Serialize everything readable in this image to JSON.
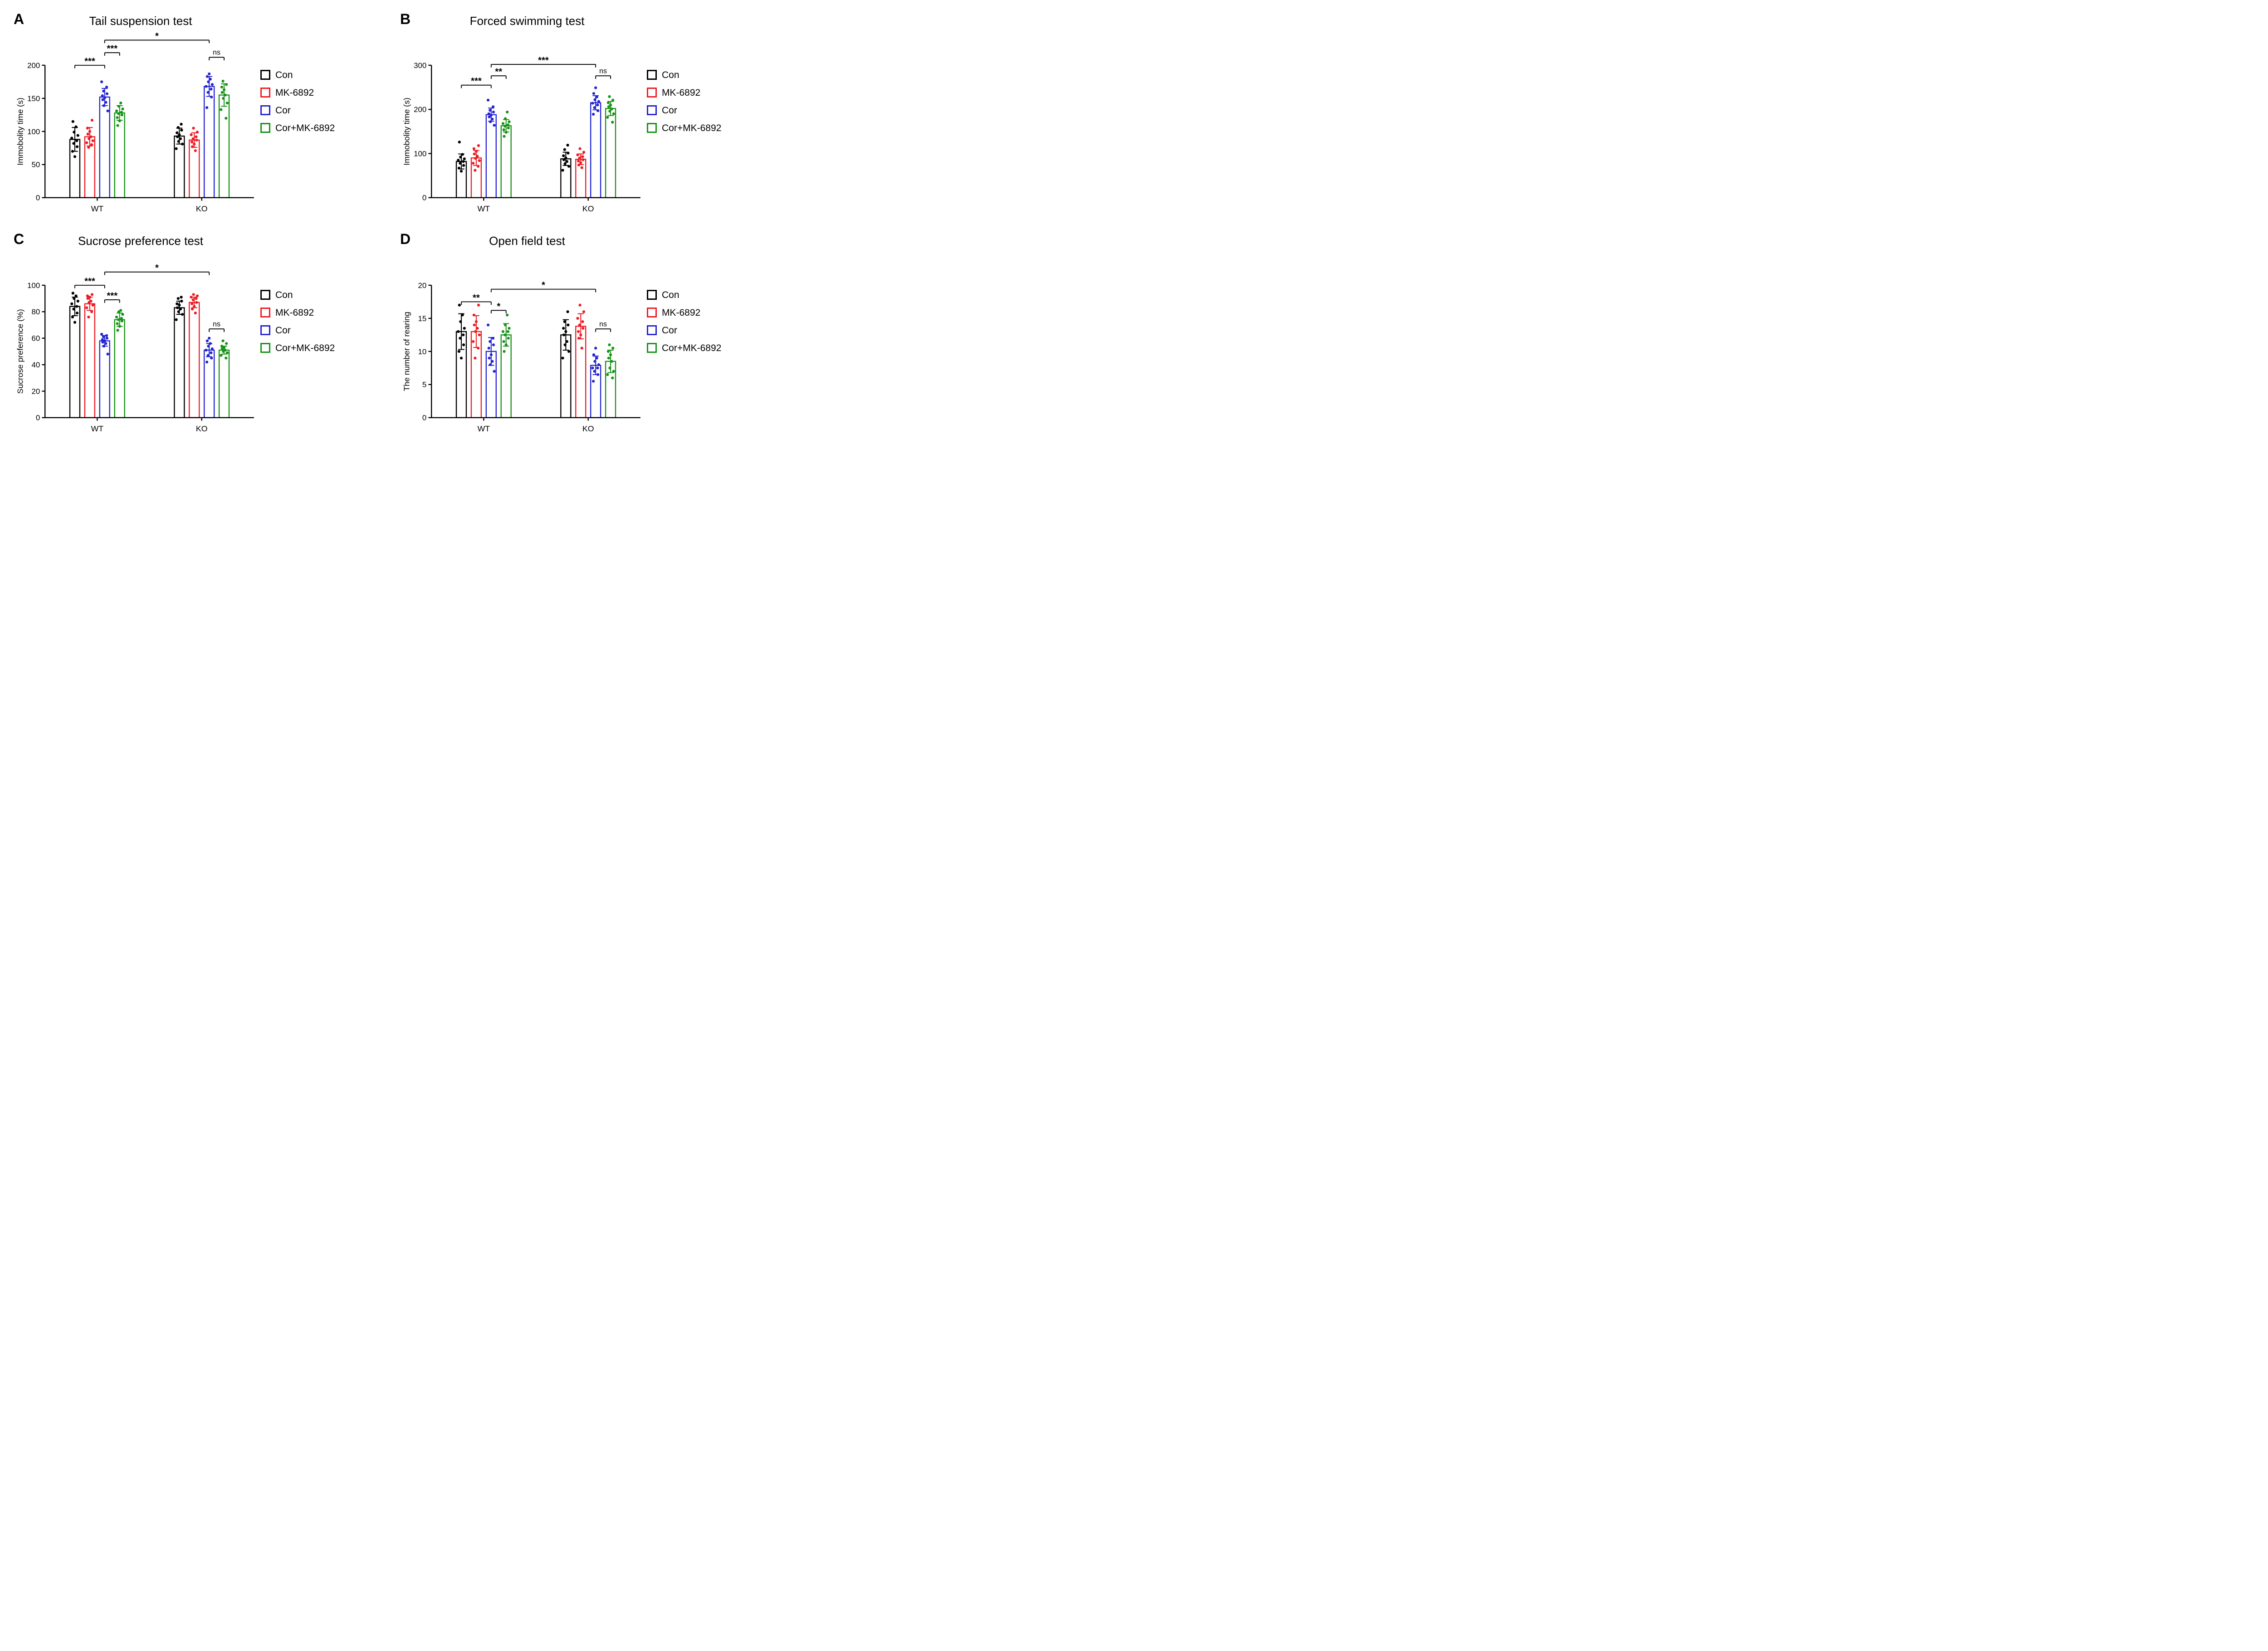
{
  "legend": {
    "items": [
      {
        "label": "Con",
        "color": "#000000"
      },
      {
        "label": "MK-6892",
        "color": "#ed1c24"
      },
      {
        "label": "Cor",
        "color": "#2424d2"
      },
      {
        "label": "Cor+MK-6892",
        "color": "#169316"
      }
    ],
    "position": "right"
  },
  "chart_data": [
    {
      "panel": "A",
      "type": "bar",
      "overlay": "scatter",
      "title": "Tail suspension test",
      "xlabel": "",
      "ylabel": "Immobolity time (s)",
      "ylim": [
        0,
        200
      ],
      "yticks": [
        0,
        50,
        100,
        150,
        200
      ],
      "categories": [
        "WT",
        "KO"
      ],
      "grid": false,
      "legend_position": "right",
      "series": [
        {
          "name": "Con",
          "color": "#000000",
          "values": [
            88,
            93
          ],
          "errors": [
            18,
            12
          ],
          "points": [
            [
              62,
              70,
              77,
              82,
              86,
              90,
              94,
              99,
              107,
              115
            ],
            [
              74,
              81,
              85,
              89,
              92,
              95,
              98,
              102,
              106,
              111
            ]
          ]
        },
        {
          "name": "MK-6892",
          "color": "#ed1c24",
          "values": [
            92,
            87
          ],
          "errors": [
            14,
            11
          ],
          "points": [
            [
              76,
              80,
              83,
              86,
              89,
              92,
              96,
              100,
              105,
              117
            ],
            [
              71,
              77,
              81,
              84,
              87,
              89,
              92,
              95,
              99,
              105
            ]
          ]
        },
        {
          "name": "Cor",
          "color": "#2424d2",
          "values": [
            152,
            168
          ],
          "errors": [
            13,
            15
          ],
          "points": [
            [
              131,
              139,
              144,
              148,
              151,
              154,
              157,
              161,
              167,
              175
            ],
            [
              136,
              152,
              159,
              164,
              168,
              171,
              175,
              179,
              183,
              187
            ]
          ]
        },
        {
          "name": "Cor+MK-6892",
          "color": "#169316",
          "values": [
            128,
            155
          ],
          "errors": [
            11,
            17
          ],
          "points": [
            [
              109,
              116,
              121,
              125,
              127,
              129,
              131,
              134,
              138,
              143
            ],
            [
              120,
              133,
              143,
              150,
              155,
              159,
              163,
              167,
              171,
              176
            ]
          ]
        }
      ],
      "annotations": [
        {
          "from": [
            0,
            0
          ],
          "to": [
            0,
            2
          ],
          "label": "***",
          "y": 200
        },
        {
          "from": [
            0,
            2
          ],
          "to": [
            0,
            3
          ],
          "label": "***",
          "y": 219
        },
        {
          "from": [
            0,
            2
          ],
          "to": [
            1,
            2
          ],
          "label": "*",
          "y": 238
        },
        {
          "from": [
            1,
            2
          ],
          "to": [
            1,
            3
          ],
          "label": "ns",
          "y": 212
        }
      ]
    },
    {
      "panel": "B",
      "type": "bar",
      "overlay": "scatter",
      "title": "Forced swimming test",
      "xlabel": "",
      "ylabel": "Immobolity time (s)",
      "ylim": [
        0,
        300
      ],
      "yticks": [
        0,
        100,
        200,
        300
      ],
      "categories": [
        "WT",
        "KO"
      ],
      "grid": false,
      "legend_position": "right",
      "series": [
        {
          "name": "Con",
          "color": "#000000",
          "values": [
            82,
            88
          ],
          "errors": [
            17,
            15
          ],
          "points": [
            [
              60,
              67,
              73,
              78,
              82,
              85,
              88,
              92,
              98,
              126
            ],
            [
              62,
              71,
              77,
              82,
              86,
              90,
              95,
              101,
              109,
              119
            ]
          ]
        },
        {
          "name": "MK-6892",
          "color": "#ed1c24",
          "values": [
            90,
            87
          ],
          "errors": [
            17,
            12
          ],
          "points": [
            [
              62,
              71,
              78,
              84,
              89,
              94,
              99,
              105,
              111,
              118
            ],
            [
              68,
              74,
              79,
              83,
              86,
              90,
              93,
              97,
              103,
              111
            ]
          ]
        },
        {
          "name": "Cor",
          "color": "#2424d2",
          "values": [
            188,
            215
          ],
          "errors": [
            15,
            16
          ],
          "points": [
            [
              164,
              172,
              178,
              183,
              187,
              190,
              194,
              198,
              206,
              221
            ],
            [
              189,
              197,
              204,
              210,
              214,
              218,
              222,
              228,
              236,
              249
            ]
          ]
        },
        {
          "name": "Cor+MK-6892",
          "color": "#169316",
          "values": [
            163,
            202
          ],
          "errors": [
            14,
            16
          ],
          "points": [
            [
              139,
              148,
              154,
              158,
              162,
              165,
              168,
              172,
              179,
              194
            ],
            [
              171,
              182,
              190,
              196,
              201,
              206,
              210,
              215,
              221,
              229
            ]
          ]
        }
      ],
      "annotations": [
        {
          "from": [
            0,
            0
          ],
          "to": [
            0,
            2
          ],
          "label": "***",
          "y": 255
        },
        {
          "from": [
            0,
            2
          ],
          "to": [
            0,
            3
          ],
          "label": "**",
          "y": 276
        },
        {
          "from": [
            0,
            2
          ],
          "to": [
            1,
            2
          ],
          "label": "***",
          "y": 302
        },
        {
          "from": [
            1,
            2
          ],
          "to": [
            1,
            3
          ],
          "label": "ns",
          "y": 276
        }
      ]
    },
    {
      "panel": "C",
      "type": "bar",
      "overlay": "scatter",
      "title": "Sucrose preference test",
      "xlabel": "",
      "ylabel": "Sucrose preference (%)",
      "ylim": [
        0,
        100
      ],
      "yticks": [
        0,
        20,
        40,
        60,
        80,
        100
      ],
      "categories": [
        "WT",
        "KO"
      ],
      "grid": false,
      "legend_position": "right",
      "series": [
        {
          "name": "Con",
          "color": "#000000",
          "values": [
            84,
            83
          ],
          "errors": [
            7,
            5
          ],
          "points": [
            [
              72,
              76,
              79,
              82,
              84,
              86,
              88,
              90,
              92,
              94
            ],
            [
              74,
              78,
              80,
              82,
              83,
              85,
              86,
              88,
              90,
              91
            ]
          ]
        },
        {
          "name": "MK-6892",
          "color": "#ed1c24",
          "values": [
            86,
            87
          ],
          "errors": [
            5,
            4
          ],
          "points": [
            [
              76,
              80,
              83,
              85,
              87,
              88,
              90,
              91,
              92,
              93
            ],
            [
              79,
              82,
              84,
              86,
              87,
              89,
              90,
              91,
              92,
              93
            ]
          ]
        },
        {
          "name": "Cor",
          "color": "#2424d2",
          "values": [
            58,
            51
          ],
          "errors": [
            4,
            5
          ],
          "points": [
            [
              48,
              54,
              56,
              57,
              58,
              59,
              60,
              61,
              62,
              63
            ],
            [
              42,
              45,
              47,
              49,
              51,
              52,
              54,
              56,
              58,
              60
            ]
          ]
        },
        {
          "name": "Cor+MK-6892",
          "color": "#169316",
          "values": [
            74,
            51
          ],
          "errors": [
            5,
            3
          ],
          "points": [
            [
              66,
              69,
              71,
              73,
              74,
              75,
              76,
              78,
              80,
              81
            ],
            [
              45,
              47,
              49,
              50,
              51,
              52,
              53,
              54,
              56,
              58
            ]
          ]
        }
      ],
      "annotations": [
        {
          "from": [
            0,
            0
          ],
          "to": [
            0,
            2
          ],
          "label": "***",
          "y": 100
        },
        {
          "from": [
            0,
            2
          ],
          "to": [
            0,
            3
          ],
          "label": "***",
          "y": 89
        },
        {
          "from": [
            0,
            2
          ],
          "to": [
            1,
            2
          ],
          "label": "*",
          "y": 110
        },
        {
          "from": [
            1,
            2
          ],
          "to": [
            1,
            3
          ],
          "label": "ns",
          "y": 67
        }
      ]
    },
    {
      "panel": "D",
      "type": "bar",
      "overlay": "scatter",
      "title": "Open field test",
      "xlabel": "",
      "ylabel": "The number of rearing",
      "ylim": [
        0,
        20
      ],
      "yticks": [
        0,
        5,
        10,
        15,
        20
      ],
      "categories": [
        "WT",
        "KO"
      ],
      "grid": false,
      "legend_position": "right",
      "series": [
        {
          "name": "Con",
          "color": "#000000",
          "values": [
            13,
            12.5
          ],
          "errors": [
            2.7,
            2.3
          ],
          "points": [
            [
              9,
              10,
              11,
              12,
              12.5,
              13,
              13.5,
              14.5,
              15.5,
              17
            ],
            [
              9,
              10,
              11,
              11.5,
              12.5,
              13,
              13.5,
              14,
              14.5,
              16
            ]
          ]
        },
        {
          "name": "MK-6892",
          "color": "#ed1c24",
          "values": [
            13,
            13.8
          ],
          "errors": [
            2.4,
            1.9
          ],
          "points": [
            [
              9,
              10.5,
              11.5,
              12.5,
              13,
              13.5,
              14,
              14.5,
              15.5,
              17
            ],
            [
              10.5,
              12,
              12.5,
              13,
              13.5,
              14,
              14.5,
              15,
              16,
              17
            ]
          ]
        },
        {
          "name": "Cor",
          "color": "#2424d2",
          "values": [
            10,
            7.9
          ],
          "errors": [
            2.1,
            1.4
          ],
          "points": [
            [
              7,
              8,
              8.5,
              9,
              9.5,
              10.5,
              11,
              11.5,
              12,
              14
            ],
            [
              5.5,
              6.5,
              7,
              7.5,
              7.5,
              8,
              8.5,
              9,
              9.5,
              10.5
            ]
          ]
        },
        {
          "name": "Cor+MK-6892",
          "color": "#169316",
          "values": [
            12.5,
            8.5
          ],
          "errors": [
            1.7,
            1.7
          ],
          "points": [
            [
              10,
              11,
              11.5,
              12,
              12.5,
              13,
              13,
              13.5,
              14,
              15.5
            ],
            [
              6,
              6.5,
              7,
              7.5,
              8.5,
              9,
              9.5,
              10,
              10.5,
              11
            ]
          ]
        }
      ],
      "annotations": [
        {
          "from": [
            0,
            0
          ],
          "to": [
            0,
            2
          ],
          "label": "**",
          "y": 17.5
        },
        {
          "from": [
            0,
            2
          ],
          "to": [
            0,
            3
          ],
          "label": "*",
          "y": 16.2
        },
        {
          "from": [
            0,
            2
          ],
          "to": [
            1,
            2
          ],
          "label": "*",
          "y": 19.4
        },
        {
          "from": [
            1,
            2
          ],
          "to": [
            1,
            3
          ],
          "label": "ns",
          "y": 13.4
        }
      ]
    }
  ]
}
